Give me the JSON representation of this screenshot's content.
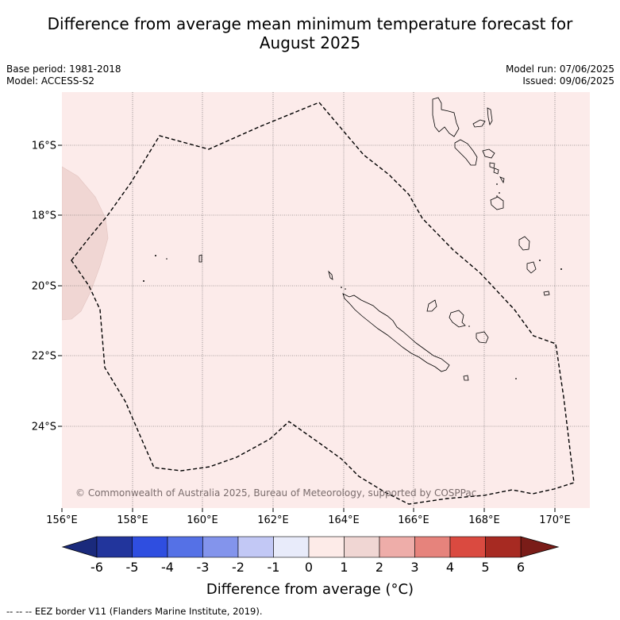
{
  "title": {
    "line1": "Difference from average mean minimum temperature forecast for",
    "line2": "August 2025"
  },
  "meta": {
    "base_period": "Base period: 1981-2018",
    "model": "Model: ACCESS-S2",
    "model_run": "Model run: 07/06/2025",
    "issued": "Issued: 09/06/2025"
  },
  "map": {
    "lon_ticks": [
      "156°E",
      "158°E",
      "160°E",
      "162°E",
      "164°E",
      "166°E",
      "168°E",
      "170°E"
    ],
    "lat_ticks": [
      "16°S",
      "18°S",
      "20°S",
      "22°S",
      "24°S"
    ],
    "background_anomaly_color": "#fcebea",
    "west_patch_color": "#f0d6d3"
  },
  "copyright": "© Commonwealth of Australia 2025, Bureau of Meteorology, supported by COSPPac",
  "colorbar": {
    "labels": [
      "-6",
      "-5",
      "-4",
      "-3",
      "-2",
      "-1",
      "0",
      "1",
      "2",
      "3",
      "4",
      "5",
      "6"
    ],
    "colors": [
      "#22359c",
      "#2f4ee0",
      "#5571e6",
      "#8394ec",
      "#c2c8f5",
      "#e8ebfa",
      "#fdebe8",
      "#f0d6d3",
      "#eeada9",
      "#e6837c",
      "#da4a40",
      "#a72a22"
    ],
    "extend_low_color": "#1a2a7c",
    "extend_high_color": "#7a1c18",
    "title": "Difference from average (°C)"
  },
  "footer": "--  --  -- EEZ border V11 (Flanders Marine Institute, 2019)."
}
